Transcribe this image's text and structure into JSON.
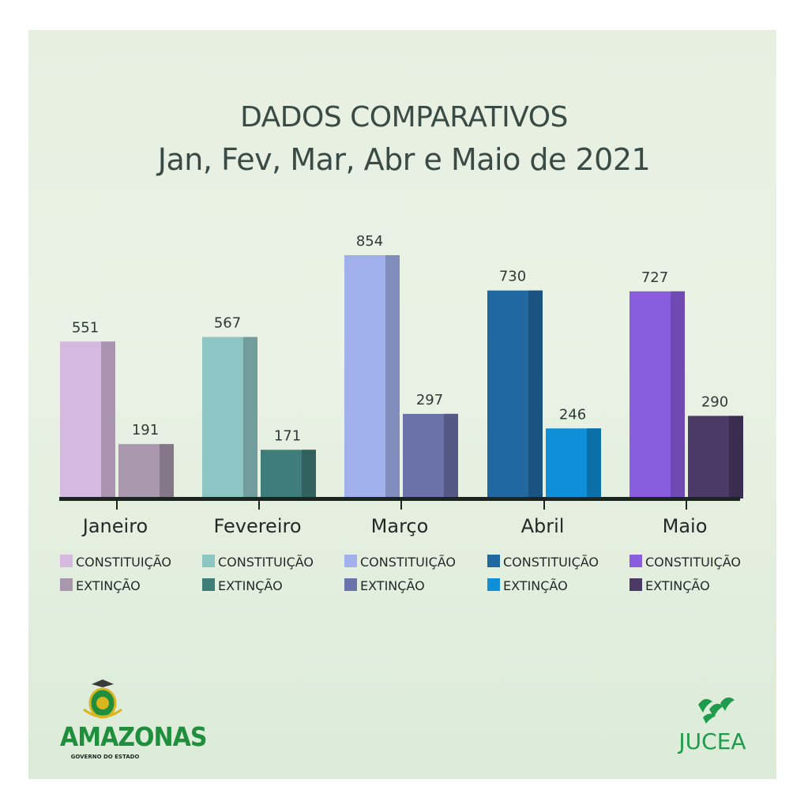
{
  "title_line1": "DADOS COMPARATIVOS",
  "title_line2": "Jan, Fev, Mar, Abr e Maio de 2021",
  "chart_data": {
    "type": "bar",
    "categories": [
      "Janeiro",
      "Fevereiro",
      "Março",
      "Abril",
      "Maio"
    ],
    "series": [
      {
        "name": "CONSTITUIÇÃO",
        "values": [
          551,
          567,
          854,
          730,
          727
        ]
      },
      {
        "name": "EXTINÇÃO",
        "values": [
          191,
          171,
          297,
          246,
          290
        ]
      }
    ],
    "colors": {
      "constituicao": [
        "#d5b9df",
        "#8dc4c4",
        "#a1b1ec",
        "#2168a0",
        "#8a5ddf"
      ],
      "extincao": [
        "#a998ad",
        "#3f7d7a",
        "#6b72a9",
        "#0f8fd7",
        "#4b3a66"
      ]
    },
    "ylim": [
      0,
      900
    ],
    "grid": false,
    "legend_placement": "below axis, under each category"
  },
  "legend": {
    "constituicao": "CONSTITUIÇÃO",
    "extincao": "EXTINÇÃO"
  },
  "logos": {
    "amazonas": "AMAZONAS",
    "amazonas_sub": "GOVERNO DO ESTADO",
    "jucea": "JUCEA"
  }
}
